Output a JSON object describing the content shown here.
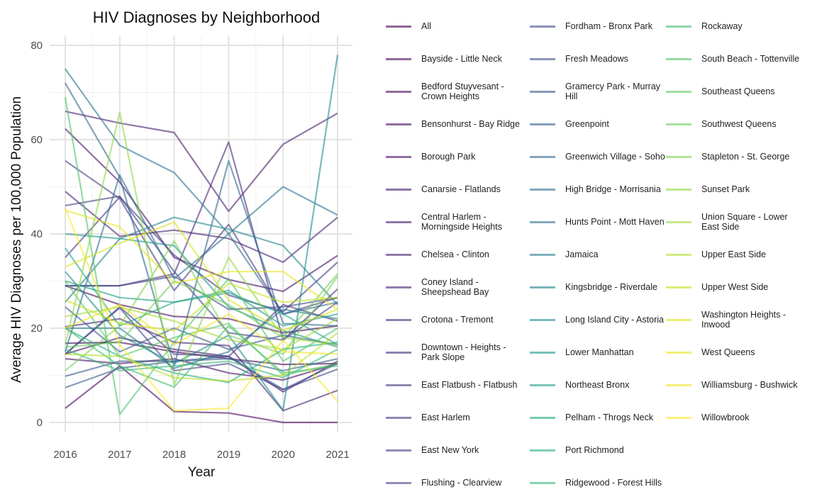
{
  "chart_data": {
    "type": "line",
    "title": "HIV Diagnoses by Neighborhood",
    "xlabel": "Year",
    "ylabel": "Average HIV Diagnoses per 100,000 Population",
    "x": [
      2016,
      2017,
      2018,
      2019,
      2020,
      2021
    ],
    "x_ticks": [
      "2016",
      "2017",
      "2018",
      "2019",
      "2020",
      "2021"
    ],
    "y_ticks": [
      "0",
      "20",
      "40",
      "60",
      "80"
    ],
    "ylim": [
      -3,
      86
    ],
    "grid": true,
    "legend_position": "right, 3 columns",
    "series": [
      {
        "name": "All",
        "color": "#440154",
        "values": [
          16.8,
          17.0,
          15.0,
          13.5,
          12.3,
          12.5
        ]
      },
      {
        "name": "Bayside - Little Neck",
        "color": "#450558",
        "values": [
          3.0,
          12.0,
          2.3,
          2.0,
          0.0,
          0.0
        ]
      },
      {
        "name": "Bedford Stuyvesant - Crown Heights",
        "color": "#46095c",
        "values": [
          29.0,
          25.0,
          22.5,
          22.0,
          19.0,
          20.5
        ]
      },
      {
        "name": "Bensonhurst - Bay Ridge",
        "color": "#470e61",
        "values": [
          13.5,
          12.5,
          13.5,
          10.5,
          9.0,
          12.5
        ]
      },
      {
        "name": "Borough Park",
        "color": "#471365",
        "values": [
          62.3,
          51.0,
          35.0,
          30.3,
          27.8,
          35.4
        ]
      },
      {
        "name": "Canarsie - Flatlands",
        "color": "#481769",
        "values": [
          14.5,
          18.0,
          15.5,
          14.0,
          6.5,
          13.0
        ]
      },
      {
        "name": "Central Harlem - Morningside Heights",
        "color": "#481b6d",
        "values": [
          66.0,
          63.5,
          61.5,
          44.8,
          59.0,
          65.6
        ]
      },
      {
        "name": "Chelsea - Clinton",
        "color": "#482071",
        "values": [
          49.0,
          39.5,
          40.8,
          39.0,
          34.0,
          43.5
        ]
      },
      {
        "name": "Coney Island - Sheepshead Bay",
        "color": "#482475",
        "values": [
          20.3,
          22.0,
          17.0,
          16.3,
          2.5,
          6.8
        ]
      },
      {
        "name": "Crotona - Tremont",
        "color": "#472c7a",
        "values": [
          29.0,
          29.0,
          31.5,
          59.5,
          17.5,
          28.3
        ]
      },
      {
        "name": "Downtown - Heights - Park Slope",
        "color": "#46327e",
        "values": [
          14.5,
          24.5,
          14.5,
          14.0,
          25.0,
          21.5
        ]
      },
      {
        "name": "East Flatbush - Flatbush",
        "color": "#453781",
        "values": [
          35.0,
          47.8,
          35.5,
          27.0,
          23.5,
          34.0
        ]
      },
      {
        "name": "East Harlem",
        "color": "#443b84",
        "values": [
          55.5,
          47.5,
          28.0,
          42.0,
          23.0,
          26.5
        ]
      },
      {
        "name": "East New York",
        "color": "#424086",
        "values": [
          46.0,
          48.0,
          32.0,
          19.0,
          17.5,
          25.5
        ]
      },
      {
        "name": "Flushing - Clearview",
        "color": "#414487",
        "values": [
          14.5,
          24.3,
          11.0,
          12.5,
          7.0,
          11.3
        ]
      },
      {
        "name": "Fordham - Bronx Park",
        "color": "#3e4989",
        "values": [
          29.0,
          29.0,
          31.0,
          24.0,
          24.5,
          26.5
        ]
      },
      {
        "name": "Fresh Meadows",
        "color": "#3b528b",
        "values": [
          9.8,
          13.0,
          13.0,
          14.0,
          7.0,
          12.5
        ]
      },
      {
        "name": "Gramercy Park - Murray Hill",
        "color": "#38588c",
        "values": [
          24.5,
          15.0,
          20.0,
          15.5,
          18.5,
          16.5
        ]
      },
      {
        "name": "Greenpoint",
        "color": "#355f8d",
        "values": [
          7.4,
          11.5,
          13.0,
          13.5,
          11.0,
          13.5
        ]
      },
      {
        "name": "Greenwich Village - Soho",
        "color": "#31688e",
        "values": [
          72.0,
          52.0,
          12.0,
          55.5,
          21.0,
          20.5
        ]
      },
      {
        "name": "High Bridge - Morrisania",
        "color": "#2e6e8e",
        "values": [
          15.0,
          52.5,
          30.5,
          40.0,
          23.0,
          25.5
        ]
      },
      {
        "name": "Hunts Point - Mott Haven",
        "color": "#2c738e",
        "values": [
          75.0,
          58.8,
          53.0,
          40.0,
          50.0,
          44.0
        ]
      },
      {
        "name": "Jamaica",
        "color": "#297b8e",
        "values": [
          20.0,
          20.0,
          11.5,
          15.0,
          24.0,
          22.0
        ]
      },
      {
        "name": "Kingsbridge - Riverdale",
        "color": "#25848e",
        "values": [
          25.5,
          39.0,
          43.5,
          41.0,
          37.5,
          25.0
        ]
      },
      {
        "name": "Long Island City - Astoria",
        "color": "#228c8d",
        "values": [
          32.0,
          18.5,
          12.5,
          18.5,
          2.6,
          78.0
        ]
      },
      {
        "name": "Lower Manhattan",
        "color": "#1f968b",
        "values": [
          40.0,
          39.0,
          37.5,
          24.5,
          19.5,
          16.0
        ]
      },
      {
        "name": "Northeast Bronx",
        "color": "#1f9e89",
        "values": [
          30.0,
          26.5,
          25.5,
          28.0,
          20.5,
          23.0
        ]
      },
      {
        "name": "Pelham - Throgs Neck",
        "color": "#22a785",
        "values": [
          37.0,
          20.5,
          25.5,
          27.5,
          23.0,
          16.5
        ]
      },
      {
        "name": "Port Richmond",
        "color": "#29af7f",
        "values": [
          20.0,
          14.0,
          10.5,
          8.5,
          15.5,
          17.0
        ]
      },
      {
        "name": "Ridgewood - Forest Hills",
        "color": "#35b779",
        "values": [
          15.5,
          11.0,
          12.0,
          13.0,
          9.5,
          15.5
        ]
      },
      {
        "name": "Rockaway",
        "color": "#40bd72",
        "values": [
          20.0,
          12.0,
          7.5,
          20.5,
          10.5,
          12.0
        ]
      },
      {
        "name": "South Beach - Tottenville",
        "color": "#4ec36b",
        "values": [
          69.0,
          1.7,
          17.0,
          30.5,
          13.0,
          20.0
        ]
      },
      {
        "name": "Southeast Queens",
        "color": "#5ec962",
        "values": [
          30.0,
          14.0,
          18.0,
          21.0,
          10.0,
          12.5
        ]
      },
      {
        "name": "Southwest Queens",
        "color": "#6ccd5a",
        "values": [
          16.0,
          17.0,
          30.0,
          25.0,
          18.0,
          31.5
        ]
      },
      {
        "name": "Stapleton - St. George",
        "color": "#7ad151",
        "values": [
          11.0,
          20.5,
          38.5,
          18.5,
          14.5,
          31.0
        ]
      },
      {
        "name": "Sunset Park",
        "color": "#8fd744",
        "values": [
          16.5,
          65.8,
          8.0,
          35.0,
          18.0,
          16.5
        ]
      },
      {
        "name": "Union Square - Lower East Side",
        "color": "#a0da39",
        "values": [
          22.5,
          24.5,
          21.5,
          17.5,
          15.5,
          22.0
        ]
      },
      {
        "name": "Upper East Side",
        "color": "#b2dd2d",
        "values": [
          14.5,
          14.0,
          9.5,
          8.8,
          10.0,
          19.0
        ]
      },
      {
        "name": "Upper West Side",
        "color": "#c8e020",
        "values": [
          26.0,
          21.0,
          19.5,
          29.5,
          25.5,
          26.5
        ]
      },
      {
        "name": "Washington Heights - Inwood",
        "color": "#d8e219",
        "values": [
          33.0,
          38.0,
          42.5,
          26.0,
          19.5,
          24.0
        ]
      },
      {
        "name": "West Queens",
        "color": "#e8e419",
        "values": [
          45.0,
          41.5,
          29.5,
          32.0,
          32.0,
          24.0
        ]
      },
      {
        "name": "Williamsburg - Bushwick",
        "color": "#f1e51d",
        "values": [
          20.0,
          25.0,
          16.5,
          23.0,
          15.0,
          14.5
        ]
      },
      {
        "name": "Willowbrook",
        "color": "#fde725",
        "values": [
          45.5,
          16.5,
          2.5,
          3.0,
          17.5,
          4.5
        ]
      }
    ]
  }
}
